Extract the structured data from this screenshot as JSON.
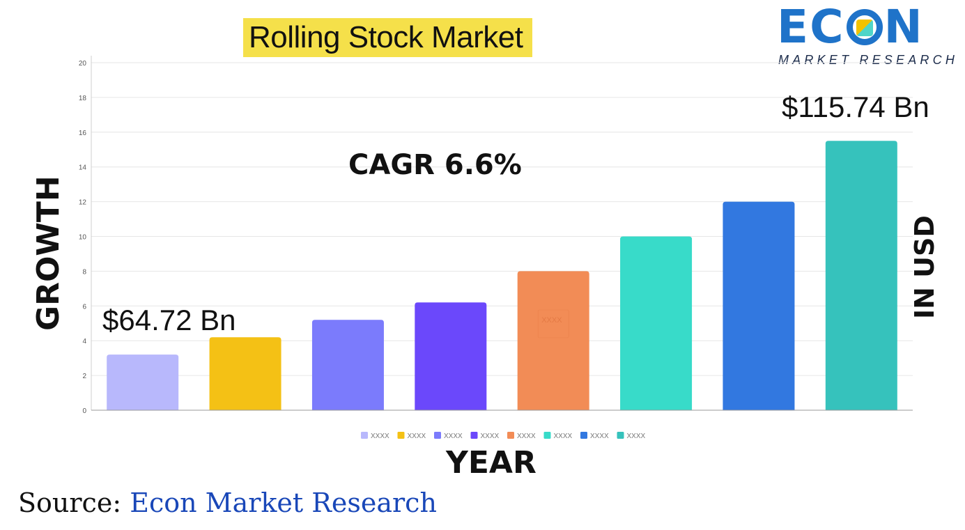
{
  "title": "Rolling Stock Market",
  "logo": {
    "word_start": "EC",
    "word_end": "N",
    "sub": "MARKET RESEARCH"
  },
  "y_axis_label": "GROWTH",
  "right_label": "IN USD",
  "x_axis_label": "YEAR",
  "cagr": "CAGR 6.6%",
  "annotation_start": "$64.72 Bn",
  "annotation_end": "$115.74 Bn",
  "source": {
    "prefix": "Source:",
    "name": "Econ Market Research"
  },
  "colors": {
    "bars": [
      "#b8b8fc",
      "#f4c115",
      "#7b7bfc",
      "#6b48fb",
      "#f28c56",
      "#38dbc9",
      "#3278e0",
      "#36c2bc"
    ],
    "title_highlight": "#f5e04a",
    "logo_blue": "#1f73c9",
    "source_blue": "#1947b8"
  },
  "chart_data": {
    "type": "bar",
    "categories": [
      "XXXX",
      "XXXX",
      "XXXX",
      "XXXX",
      "XXXX",
      "XXXX",
      "XXXX",
      "XXXX"
    ],
    "values": [
      3.2,
      4.2,
      5.2,
      6.2,
      8,
      10,
      12,
      15.5
    ],
    "ylim": [
      0,
      20
    ],
    "yticks": [
      0,
      2,
      4,
      6,
      8,
      10,
      12,
      14,
      16,
      18,
      20
    ],
    "grid": true,
    "legend": "bottom",
    "legend_entries": [
      "XXXX",
      "XXXX",
      "XXXX",
      "XXXX",
      "XXXX",
      "XXXX",
      "XXXX",
      "XXXX"
    ],
    "bar_inner_label": "XXXX"
  }
}
